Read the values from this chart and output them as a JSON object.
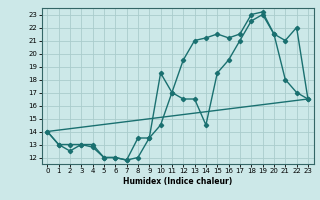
{
  "xlabel": "Humidex (Indice chaleur)",
  "bg_color": "#cce8e8",
  "line_color": "#1a7070",
  "grid_color": "#aacccc",
  "xlim": [
    -0.5,
    23.5
  ],
  "ylim": [
    11.5,
    23.5
  ],
  "xticks": [
    0,
    1,
    2,
    3,
    4,
    5,
    6,
    7,
    8,
    9,
    10,
    11,
    12,
    13,
    14,
    15,
    16,
    17,
    18,
    19,
    20,
    21,
    22,
    23
  ],
  "yticks": [
    12,
    13,
    14,
    15,
    16,
    17,
    18,
    19,
    20,
    21,
    22,
    23
  ],
  "line1_x": [
    0,
    1,
    2,
    3,
    4,
    5,
    6,
    7,
    8,
    9,
    10,
    11,
    12,
    13,
    14,
    15,
    16,
    17,
    18,
    19,
    20,
    21,
    22,
    23
  ],
  "line1_y": [
    14,
    13,
    12.5,
    13,
    13,
    12,
    12,
    11.8,
    13.5,
    13.5,
    14.5,
    17,
    19.5,
    21,
    21.2,
    21.5,
    21.2,
    21.5,
    23,
    23.2,
    21.5,
    18,
    17,
    16.5
  ],
  "line2_x": [
    0,
    1,
    2,
    3,
    4,
    5,
    6,
    7,
    8,
    9,
    10,
    11,
    12,
    13,
    14,
    15,
    16,
    17,
    18,
    19,
    20,
    21,
    22,
    23
  ],
  "line2_y": [
    14,
    13,
    13,
    13,
    12.8,
    12,
    12,
    11.8,
    12,
    13.5,
    18.5,
    17,
    16.5,
    16.5,
    14.5,
    18.5,
    19.5,
    21,
    22.5,
    23,
    21.5,
    21,
    22,
    16.5
  ],
  "line3_x": [
    0,
    23
  ],
  "line3_y": [
    14,
    16.5
  ],
  "marker": "D",
  "markersize": 2.2,
  "linewidth": 1.0
}
